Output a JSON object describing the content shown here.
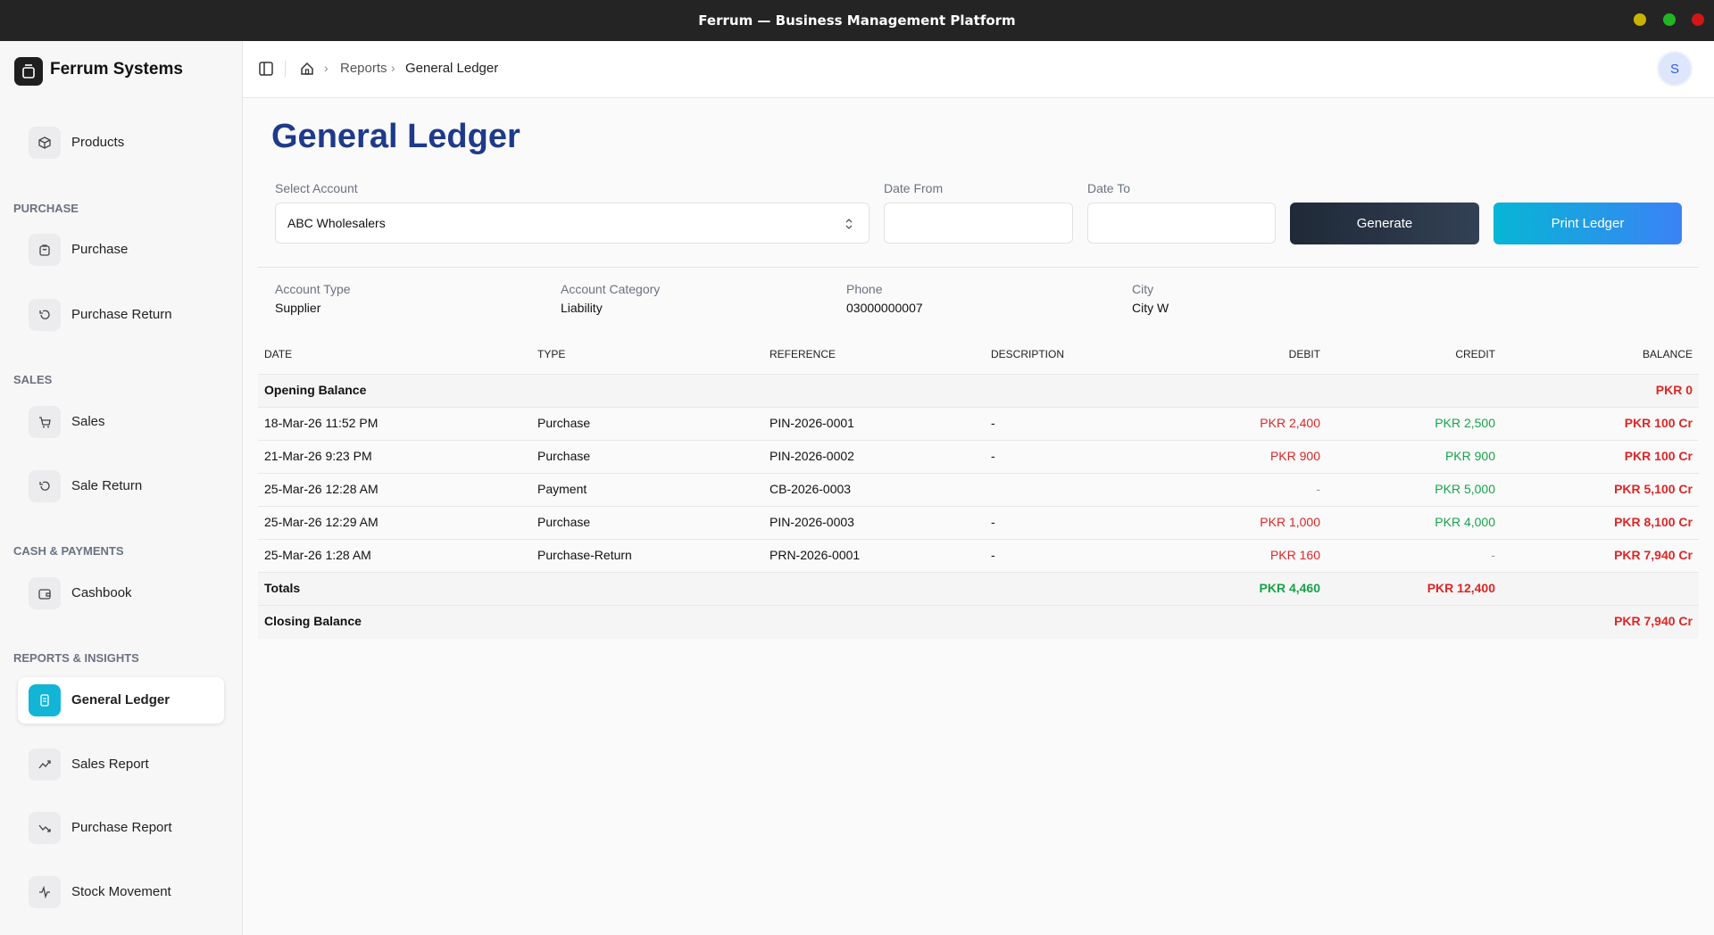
{
  "window": {
    "title": "Ferrum — Business Management Platform"
  },
  "sidebar": {
    "brand": "Ferrum Systems",
    "top_items": [
      {
        "label": "Products"
      }
    ],
    "sections": [
      {
        "heading": "PURCHASE",
        "items": [
          {
            "label": "Purchase"
          },
          {
            "label": "Purchase Return"
          }
        ]
      },
      {
        "heading": "SALES",
        "items": [
          {
            "label": "Sales"
          },
          {
            "label": "Sale Return"
          }
        ]
      },
      {
        "heading": "CASH & PAYMENTS",
        "items": [
          {
            "label": "Cashbook"
          }
        ]
      },
      {
        "heading": "REPORTS & INSIGHTS",
        "items": [
          {
            "label": "General Ledger",
            "active": true
          },
          {
            "label": "Sales Report"
          },
          {
            "label": "Purchase Report"
          },
          {
            "label": "Stock Movement"
          }
        ]
      }
    ]
  },
  "header": {
    "breadcrumb": [
      "Reports",
      "General Ledger"
    ],
    "avatar": "S"
  },
  "page": {
    "title": "General Ledger",
    "form": {
      "account": {
        "label": "Select Account",
        "value": "ABC Wholesalers"
      },
      "date_from": {
        "label": "Date From"
      },
      "date_to": {
        "label": "Date To"
      },
      "buttons": [
        "Generate",
        "Print Ledger"
      ]
    },
    "account_info": [
      {
        "label": "Account Type",
        "value": "Supplier"
      },
      {
        "label": "Account Category",
        "value": "Liability"
      },
      {
        "label": "Phone",
        "value": "03000000007"
      },
      {
        "label": "City",
        "value": "City W"
      }
    ],
    "table": {
      "headers": [
        "DATE",
        "TYPE",
        "REFERENCE",
        "DESCRIPTION",
        "DEBIT",
        "CREDIT",
        "BALANCE"
      ],
      "opening": {
        "label": "Opening Balance",
        "balance": "PKR 0"
      },
      "rows": [
        [
          "18-Mar-26 11:52 PM",
          "Purchase",
          "PIN-2026-0001",
          "-",
          "PKR 2,400",
          "PKR 2,500",
          "PKR 100 Cr"
        ],
        [
          "21-Mar-26 9:23 PM",
          "Purchase",
          "PIN-2026-0002",
          "-",
          "PKR 900",
          "PKR 900",
          "PKR 100 Cr"
        ],
        [
          "25-Mar-26 12:28 AM",
          "Payment",
          "CB-2026-0003",
          "",
          "-",
          "PKR 5,000",
          "PKR 5,100 Cr"
        ],
        [
          "25-Mar-26 12:29 AM",
          "Purchase",
          "PIN-2026-0003",
          "-",
          "PKR 1,000",
          "PKR 4,000",
          "PKR 8,100 Cr"
        ],
        [
          "25-Mar-26 1:28 AM",
          "Purchase-Return",
          "PRN-2026-0001",
          "-",
          "PKR 160",
          "-",
          "PKR 7,940 Cr"
        ]
      ],
      "totals": {
        "label": "Totals",
        "debit": "PKR 4,460",
        "credit": "PKR 12,400"
      },
      "closing": {
        "label": "Closing Balance",
        "balance": "PKR 7,940 Cr"
      }
    }
  }
}
